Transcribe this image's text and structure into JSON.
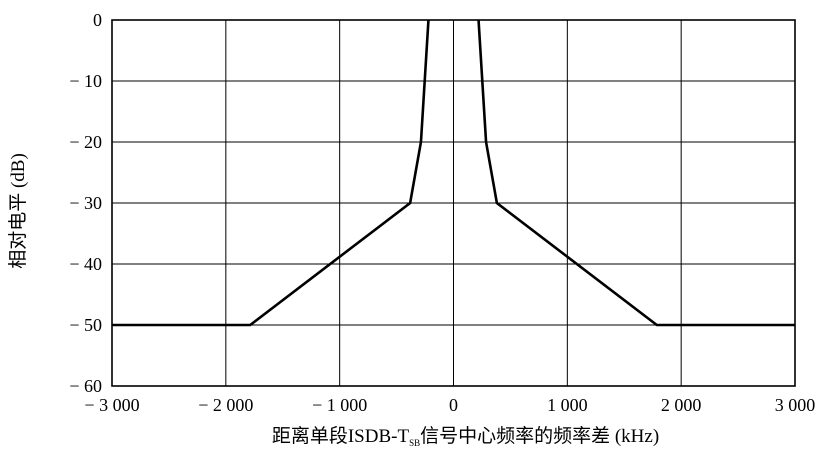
{
  "chart_data": {
    "type": "line",
    "title": "",
    "xlabel": "距离单段ISDB-T",
    "xlabel_sub": "SB",
    "xlabel_rest": "信号中心频率的频率差 (kHz)",
    "ylabel": "相对电平 (dB)",
    "xlim": [
      -3000,
      3000
    ],
    "ylim": [
      -60,
      0
    ],
    "grid": true,
    "x_ticks": [
      -3000,
      -2000,
      -1000,
      0,
      1000,
      2000,
      3000
    ],
    "x_tick_labels": [
      "− 3 000",
      "− 2 000",
      "− 1 000",
      "0",
      "1 000",
      "2 000",
      "3 000"
    ],
    "y_ticks": [
      0,
      -10,
      -20,
      -30,
      -40,
      -50,
      -60
    ],
    "y_tick_labels": [
      "0",
      "− 10",
      "− 20",
      "− 30",
      "− 40",
      "− 50",
      "− 60"
    ],
    "series": [
      {
        "x": [
          -3000,
          -1786,
          -381,
          -286,
          -220,
          -220
        ],
        "y": [
          -50,
          -50,
          -30,
          -20,
          0,
          0
        ]
      },
      {
        "x": [
          220,
          220,
          286,
          381,
          1786,
          3000
        ],
        "y": [
          0,
          0,
          -20,
          -30,
          -50,
          -50
        ]
      }
    ]
  }
}
